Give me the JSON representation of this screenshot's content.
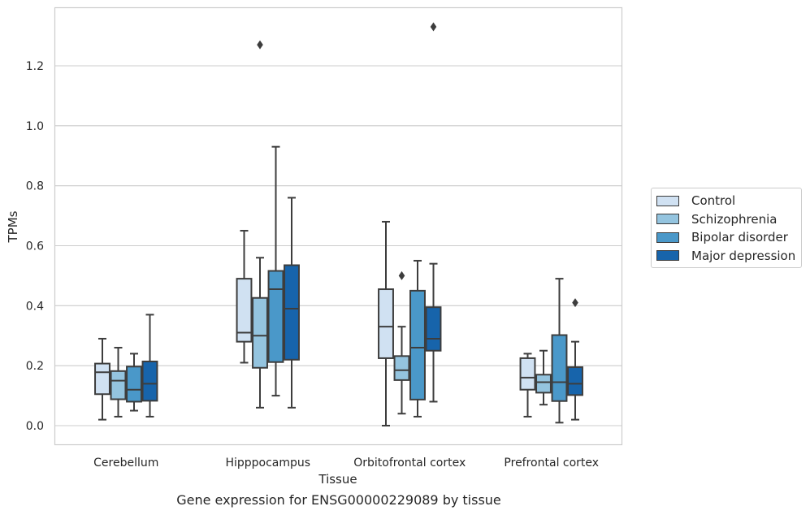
{
  "caption": "Gene expression for ENSG00000229089 by tissue",
  "chart_data": {
    "type": "box",
    "xlabel": "Tissue",
    "ylabel": "TPMs",
    "ylim": [
      -0.065,
      1.395
    ],
    "yticks": [
      0.0,
      0.2,
      0.4,
      0.6,
      0.8,
      1.0,
      1.2
    ],
    "ytick_labels": [
      "0.0",
      "0.2",
      "0.4",
      "0.6",
      "0.8",
      "1.0",
      "1.2"
    ],
    "grid": "horizontal",
    "legend_position": "right",
    "categories": [
      "Cerebellum",
      "Hipppocampus",
      "Orbitofrontal cortex",
      "Prefrontal cortex"
    ],
    "series": [
      {
        "name": "Control",
        "color": "#d0e1f2",
        "boxes": [
          {
            "whislo": 0.02,
            "q1": 0.105,
            "med": 0.178,
            "q3": 0.207,
            "whishi": 0.29,
            "fliers": []
          },
          {
            "whislo": 0.21,
            "q1": 0.28,
            "med": 0.31,
            "q3": 0.49,
            "whishi": 0.65,
            "fliers": []
          },
          {
            "whislo": 0.0,
            "q1": 0.225,
            "med": 0.33,
            "q3": 0.455,
            "whishi": 0.68,
            "fliers": []
          },
          {
            "whislo": 0.03,
            "q1": 0.12,
            "med": 0.16,
            "q3": 0.225,
            "whishi": 0.24,
            "fliers": []
          }
        ]
      },
      {
        "name": "Schizophrenia",
        "color": "#94c4df",
        "boxes": [
          {
            "whislo": 0.03,
            "q1": 0.088,
            "med": 0.15,
            "q3": 0.182,
            "whishi": 0.26,
            "fliers": []
          },
          {
            "whislo": 0.06,
            "q1": 0.193,
            "med": 0.3,
            "q3": 0.426,
            "whishi": 0.56,
            "fliers": [
              1.27
            ]
          },
          {
            "whislo": 0.04,
            "q1": 0.152,
            "med": 0.185,
            "q3": 0.232,
            "whishi": 0.33,
            "fliers": [
              0.5
            ]
          },
          {
            "whislo": 0.07,
            "q1": 0.11,
            "med": 0.145,
            "q3": 0.17,
            "whishi": 0.25,
            "fliers": []
          }
        ]
      },
      {
        "name": "Bipolar disorder",
        "color": "#4a98c9",
        "boxes": [
          {
            "whislo": 0.05,
            "q1": 0.08,
            "med": 0.12,
            "q3": 0.197,
            "whishi": 0.24,
            "fliers": []
          },
          {
            "whislo": 0.1,
            "q1": 0.212,
            "med": 0.455,
            "q3": 0.516,
            "whishi": 0.93,
            "fliers": []
          },
          {
            "whislo": 0.03,
            "q1": 0.087,
            "med": 0.26,
            "q3": 0.45,
            "whishi": 0.55,
            "fliers": []
          },
          {
            "whislo": 0.01,
            "q1": 0.082,
            "med": 0.145,
            "q3": 0.302,
            "whishi": 0.49,
            "fliers": []
          }
        ]
      },
      {
        "name": "Major depression",
        "color": "#1764ab",
        "boxes": [
          {
            "whislo": 0.03,
            "q1": 0.083,
            "med": 0.14,
            "q3": 0.214,
            "whishi": 0.37,
            "fliers": []
          },
          {
            "whislo": 0.06,
            "q1": 0.22,
            "med": 0.39,
            "q3": 0.535,
            "whishi": 0.76,
            "fliers": []
          },
          {
            "whislo": 0.08,
            "q1": 0.25,
            "med": 0.29,
            "q3": 0.395,
            "whishi": 0.54,
            "fliers": [
              1.33
            ]
          },
          {
            "whislo": 0.02,
            "q1": 0.102,
            "med": 0.14,
            "q3": 0.195,
            "whishi": 0.28,
            "fliers": [
              0.41
            ]
          }
        ]
      }
    ]
  }
}
